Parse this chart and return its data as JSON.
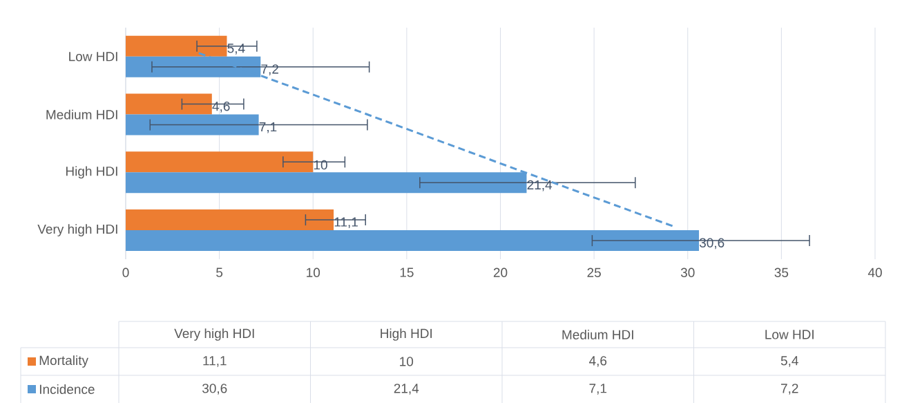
{
  "chart_data": {
    "type": "bar",
    "orientation": "horizontal",
    "categories": [
      "Low HDI",
      "Medium HDI",
      "High HDI",
      "Very high HDI"
    ],
    "series": [
      {
        "name": "Mortality",
        "color": "#ed7d31",
        "values": [
          5.4,
          4.6,
          10,
          11.1
        ],
        "value_labels": [
          "5,4",
          "4,6",
          "10",
          "11,1"
        ],
        "errors": [
          [
            3.8,
            7.0
          ],
          [
            3.0,
            6.3
          ],
          [
            8.4,
            11.7
          ],
          [
            9.6,
            12.8
          ]
        ]
      },
      {
        "name": "Incidence",
        "color": "#5b9bd5",
        "values": [
          7.2,
          7.1,
          21.4,
          30.6
        ],
        "value_labels": [
          "7,2",
          "7,1",
          "21,4",
          "30,6"
        ],
        "errors": [
          [
            1.4,
            13.0
          ],
          [
            1.3,
            12.9
          ],
          [
            15.7,
            27.2
          ],
          [
            24.9,
            36.5
          ]
        ]
      },
      {
        "type": "line",
        "color": "#5b9bd5",
        "line_style": "dashed",
        "values": [
          3.9,
          12.4,
          20.8,
          29.3
        ]
      }
    ],
    "xlim": [
      0,
      40
    ],
    "xticks": [
      0,
      5,
      10,
      15,
      20,
      25,
      30,
      35,
      40
    ],
    "grid": "x",
    "legend": "bottom"
  }
}
